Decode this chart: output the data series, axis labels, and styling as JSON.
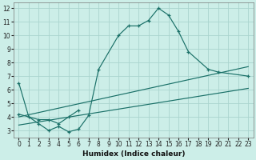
{
  "xlabel": "Humidex (Indice chaleur)",
  "bg_color": "#cceee8",
  "grid_color": "#aad4ce",
  "line_color": "#1a7068",
  "xlim": [
    -0.5,
    23.5
  ],
  "ylim": [
    2.5,
    12.4
  ],
  "xticks": [
    0,
    1,
    2,
    3,
    4,
    5,
    6,
    7,
    8,
    9,
    10,
    11,
    12,
    13,
    14,
    15,
    16,
    17,
    18,
    19,
    20,
    21,
    22,
    23
  ],
  "yticks": [
    3,
    4,
    5,
    6,
    7,
    8,
    9,
    10,
    11,
    12
  ],
  "curve1_x": [
    0,
    1,
    2,
    3,
    4,
    5,
    6,
    7,
    8,
    10,
    11,
    12,
    13,
    14,
    15,
    16,
    17,
    19,
    20,
    23
  ],
  "curve1_y": [
    6.5,
    4.0,
    3.5,
    3.0,
    3.3,
    2.9,
    3.1,
    4.1,
    7.5,
    10.0,
    10.7,
    10.7,
    11.1,
    12.0,
    11.5,
    10.3,
    8.8,
    7.5,
    7.3,
    7.0
  ],
  "curve2_x": [
    0,
    2,
    3,
    4,
    5,
    6
  ],
  "curve2_y": [
    4.2,
    3.8,
    3.8,
    3.5,
    4.0,
    4.5
  ],
  "line1_x": [
    0,
    23
  ],
  "line1_y": [
    3.4,
    6.1
  ],
  "line2_x": [
    0,
    23
  ],
  "line2_y": [
    4.0,
    7.7
  ],
  "tick_fontsize": 5.5,
  "xlabel_fontsize": 6.5
}
